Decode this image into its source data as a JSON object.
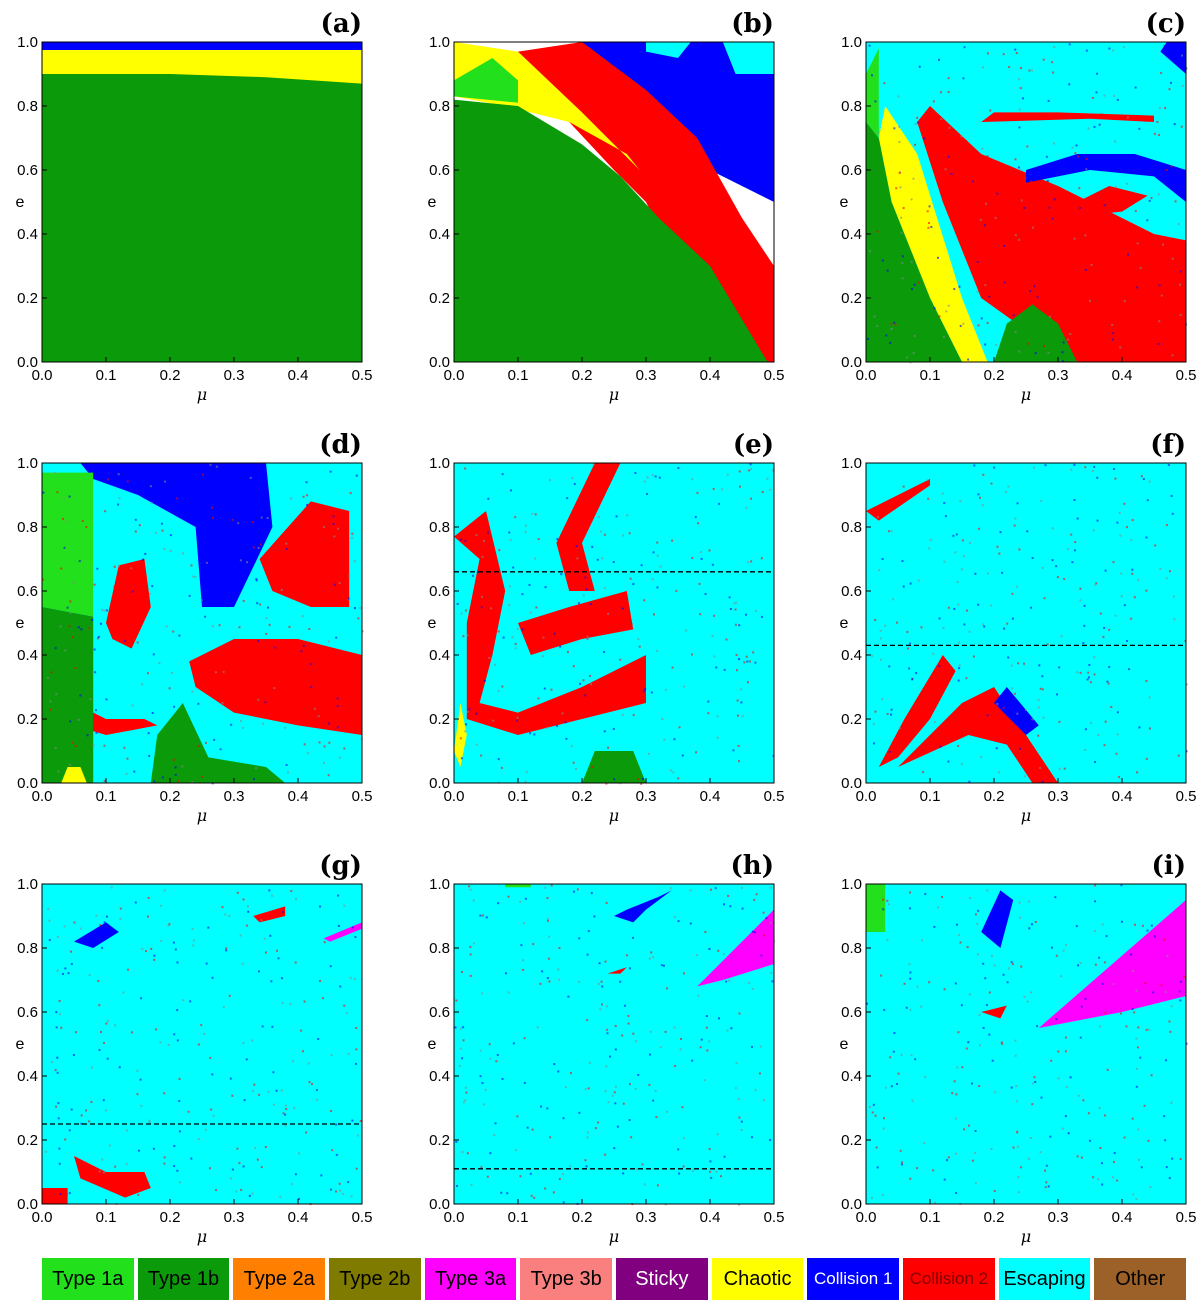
{
  "figure": {
    "axis_labels": {
      "x": "μ",
      "y": "e"
    },
    "x_ticks": [
      "0.0",
      "0.1",
      "0.2",
      "0.3",
      "0.4",
      "0.5"
    ],
    "y_ticks": [
      "0.0",
      "0.2",
      "0.4",
      "0.6",
      "0.8",
      "1.0"
    ]
  },
  "chart_data": [
    {
      "panel": "(a)",
      "type": "heatmap",
      "xlabel": "μ",
      "ylabel": "e",
      "xlim": [
        0,
        0.5
      ],
      "ylim": [
        0,
        1
      ],
      "regions": [
        {
          "class": "Type 1b",
          "description": "dominant, fills area below e≈0.85–0.90"
        },
        {
          "class": "Chaotic",
          "description": "band near e≈0.88–0.98"
        },
        {
          "class": "Collision 1",
          "description": "thin band at top, e≈0.97–1.0"
        }
      ]
    },
    {
      "panel": "(b)",
      "type": "heatmap",
      "xlabel": "μ",
      "ylabel": "e",
      "xlim": [
        0,
        0.5
      ],
      "ylim": [
        0,
        1
      ],
      "regions": [
        {
          "class": "Type 1b",
          "description": "large lower-left region"
        },
        {
          "class": "Type 1a",
          "description": "small patch near μ≈0.02–0.1, e≈0.83–0.95"
        },
        {
          "class": "Chaotic",
          "description": "streaks along upper-left boundary"
        },
        {
          "class": "Collision 2",
          "description": "diagonal band from μ≈0.15 to 0.5"
        },
        {
          "class": "Collision 1",
          "description": "band in upper right"
        },
        {
          "class": "Escaping",
          "description": "small patches at top"
        }
      ]
    },
    {
      "panel": "(c)",
      "type": "heatmap",
      "xlabel": "μ",
      "ylabel": "e",
      "xlim": [
        0,
        0.5
      ],
      "ylim": [
        0,
        1
      ],
      "regions": [
        {
          "class": "Escaping",
          "description": "large upper area and island"
        },
        {
          "class": "Collision 2",
          "description": "swirl centered near μ≈0.38, e≈0.5 and lower band"
        },
        {
          "class": "Collision 1",
          "description": "swirl layers around island"
        },
        {
          "class": "Chaotic",
          "description": "band from μ≈0.03–0.15"
        },
        {
          "class": "Type 1b",
          "description": "lower-left and bottom patch near μ≈0.25"
        }
      ]
    },
    {
      "panel": "(d)",
      "type": "heatmap",
      "xlabel": "μ",
      "ylabel": "e",
      "xlim": [
        0,
        0.5
      ],
      "ylim": [
        0,
        1
      ],
      "regions": [
        {
          "class": "Type 1a",
          "description": "left block μ<0.08, e≈0.55–0.97"
        },
        {
          "class": "Type 1b",
          "description": "lower left and bottom"
        },
        {
          "class": "Collision 2",
          "description": "spiral lobes"
        },
        {
          "class": "Collision 1",
          "description": "upper bands"
        },
        {
          "class": "Escaping",
          "description": "background"
        }
      ]
    },
    {
      "panel": "(e)",
      "type": "heatmap",
      "xlabel": "μ",
      "ylabel": "e",
      "xlim": [
        0,
        0.5
      ],
      "ylim": [
        0,
        1
      ],
      "dashed_line_e": 0.66,
      "regions": [
        {
          "class": "Collision 2",
          "description": "large swirl lobe μ≈0.02–0.3"
        },
        {
          "class": "Escaping",
          "description": "background, right area"
        },
        {
          "class": "Type 1b",
          "description": "bottom patch near μ≈0.2–0.3"
        }
      ]
    },
    {
      "panel": "(f)",
      "type": "heatmap",
      "xlabel": "μ",
      "ylabel": "e",
      "xlim": [
        0,
        0.5
      ],
      "ylim": [
        0,
        1
      ],
      "dashed_line_e": 0.43,
      "regions": [
        {
          "class": "Escaping",
          "description": "dominant background"
        },
        {
          "class": "Collision 2",
          "description": "curved bands at lower left"
        },
        {
          "class": "Collision 1",
          "description": "thin bands"
        }
      ]
    },
    {
      "panel": "(g)",
      "type": "heatmap",
      "xlabel": "μ",
      "ylabel": "e",
      "xlim": [
        0,
        0.5
      ],
      "ylim": [
        0,
        1
      ],
      "dashed_line_e": 0.25,
      "regions": [
        {
          "class": "Escaping",
          "description": "dominant background"
        },
        {
          "class": "Collision 2",
          "description": "lobes at lower left"
        },
        {
          "class": "Type 3a",
          "description": "small streaks at upper right μ≈0.44–0.5, e≈0.82–0.88"
        }
      ]
    },
    {
      "panel": "(h)",
      "type": "heatmap",
      "xlabel": "μ",
      "ylabel": "e",
      "xlim": [
        0,
        0.5
      ],
      "ylim": [
        0,
        1
      ],
      "dashed_line_e": 0.11,
      "regions": [
        {
          "class": "Escaping",
          "description": "dominant background"
        },
        {
          "class": "Collision 1",
          "description": "swirl near μ≈0.28, e≈0.9"
        },
        {
          "class": "Type 3a",
          "description": "wedge μ≈0.38–0.5, e≈0.68–0.92"
        },
        {
          "class": "Type 1a",
          "description": "small patch at top near μ≈0.1"
        }
      ]
    },
    {
      "panel": "(i)",
      "type": "heatmap",
      "xlabel": "μ",
      "ylabel": "e",
      "xlim": [
        0,
        0.5
      ],
      "ylim": [
        0,
        1
      ],
      "regions": [
        {
          "class": "Escaping",
          "description": "dominant background"
        },
        {
          "class": "Type 3a",
          "description": "large wedge μ≈0.27–0.5, e≈0.55–0.95"
        },
        {
          "class": "Type 1a",
          "description": "corner patch μ<0.03, e>0.85"
        },
        {
          "class": "Collision 1",
          "description": "swirl near μ≈0.2, e≈0.85"
        }
      ]
    }
  ],
  "legend": {
    "items": [
      {
        "label": "Type 1a",
        "color": "#22e01c",
        "text_color": "#000000"
      },
      {
        "label": "Type 1b",
        "color": "#0a9a0a",
        "text_color": "#000000"
      },
      {
        "label": "Type 2a",
        "color": "#ff8000",
        "text_color": "#000000"
      },
      {
        "label": "Type 2b",
        "color": "#7f7a00",
        "text_color": "#000000"
      },
      {
        "label": "Type 3a",
        "color": "#ff00ff",
        "text_color": "#000000"
      },
      {
        "label": "Type 3b",
        "color": "#fa8080",
        "text_color": "#000000"
      },
      {
        "label": "Sticky",
        "color": "#800080",
        "text_color": "#ffffff"
      },
      {
        "label": "Chaotic",
        "color": "#ffff00",
        "text_color": "#000000"
      },
      {
        "label": "Collision 1",
        "color": "#0000ff",
        "text_color": "#ffffff",
        "small": true
      },
      {
        "label": "Collision 2",
        "color": "#ff0000",
        "text_color": "#800000",
        "small": true
      },
      {
        "label": "Escaping",
        "color": "#00ffff",
        "text_color": "#000000"
      },
      {
        "label": "Other",
        "color": "#9b6128",
        "text_color": "#000000"
      }
    ]
  }
}
